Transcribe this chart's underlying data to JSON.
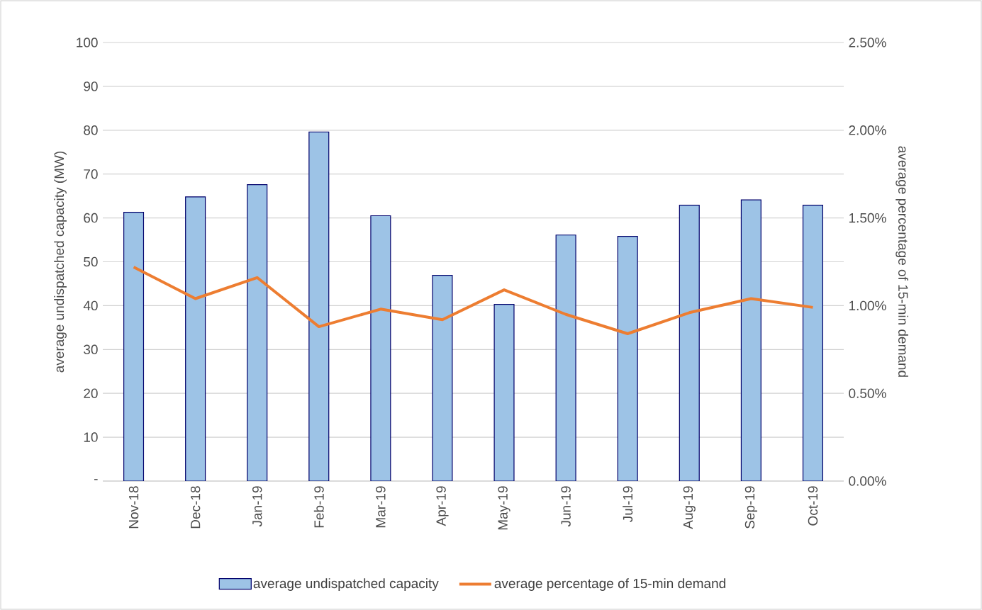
{
  "chart_data": {
    "type": "bar",
    "categories": [
      "Nov-18",
      "Dec-18",
      "Jan-19",
      "Feb-19",
      "Mar-19",
      "Apr-19",
      "May-19",
      "Jun-19",
      "Jul-19",
      "Aug-19",
      "Sep-19",
      "Oct-19"
    ],
    "series": [
      {
        "name": "average undispatched capacity",
        "color": "#9dc3e6",
        "values": [
          61.3,
          64.8,
          67.6,
          79.6,
          60.5,
          46.9,
          40.3,
          56.1,
          55.8,
          62.9,
          64.1,
          62.9
        ]
      },
      {
        "name": "average percentage of 15-min demand",
        "type": "line",
        "axis": "y2",
        "color": "#ed7d31",
        "values": [
          1.22,
          1.04,
          1.16,
          0.88,
          0.98,
          0.92,
          1.09,
          0.95,
          0.84,
          0.96,
          1.04,
          0.99
        ]
      }
    ],
    "ylabel": "average undispatched capacity (MW)",
    "y2label": "average percentage of 15-min demand",
    "ylim": [
      0,
      100
    ],
    "yticks": [
      {
        "value": 0,
        "label": "-"
      },
      10,
      20,
      30,
      40,
      50,
      60,
      70,
      80,
      90,
      100
    ],
    "y2lim": [
      0,
      2.5
    ],
    "y2ticks": [
      {
        "value": 0,
        "label": "0.00%"
      },
      {
        "value": 0.5,
        "label": "0.50%"
      },
      {
        "value": 1,
        "label": "1.00%"
      },
      {
        "value": 1.5,
        "label": "1.50%"
      },
      {
        "value": 2,
        "label": "2.00%"
      },
      {
        "value": 2.5,
        "label": "2.50%"
      }
    ],
    "grid": "y",
    "legend": "bottom"
  }
}
